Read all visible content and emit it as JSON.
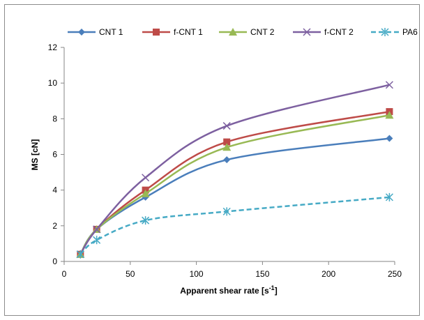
{
  "chart_data": {
    "type": "line",
    "xlabel": "Apparent shear rate [s",
    "xlabel_sup": "-1",
    "xlabel_end": "]",
    "ylabel": "MS [cN]",
    "xlim": [
      0,
      250
    ],
    "ylim": [
      0,
      12
    ],
    "x_ticks": [
      "0",
      "50",
      "100",
      "150",
      "200",
      "250"
    ],
    "y_ticks": [
      "0",
      "2",
      "4",
      "6",
      "8",
      "10",
      "12"
    ],
    "legend_position": "top",
    "grid": false,
    "series": [
      {
        "name": "CNT 1",
        "color": "#4a7ebb",
        "marker": "diamond",
        "dashed": false,
        "x": [
          12.3,
          24.6,
          61.5,
          123,
          246
        ],
        "y": [
          0.4,
          1.8,
          3.6,
          5.7,
          6.9
        ]
      },
      {
        "name": "f-CNT 1",
        "color": "#be4b48",
        "marker": "square",
        "dashed": false,
        "x": [
          12.3,
          24.6,
          61.5,
          123,
          246
        ],
        "y": [
          0.4,
          1.8,
          4.0,
          6.7,
          8.4
        ]
      },
      {
        "name": "CNT 2",
        "color": "#98b954",
        "marker": "triangle",
        "dashed": false,
        "x": [
          12.3,
          24.6,
          61.5,
          123,
          246
        ],
        "y": [
          0.4,
          1.8,
          3.8,
          6.4,
          8.2
        ]
      },
      {
        "name": "f-CNT 2",
        "color": "#7d60a0",
        "marker": "x",
        "dashed": false,
        "x": [
          12.3,
          24.6,
          61.5,
          123,
          246
        ],
        "y": [
          0.4,
          1.8,
          4.7,
          7.6,
          9.9
        ]
      },
      {
        "name": "PA6",
        "color": "#46aac5",
        "marker": "star",
        "dashed": true,
        "x": [
          12.3,
          24.6,
          61.5,
          123,
          246
        ],
        "y": [
          0.4,
          1.2,
          2.3,
          2.8,
          3.6
        ]
      }
    ]
  }
}
